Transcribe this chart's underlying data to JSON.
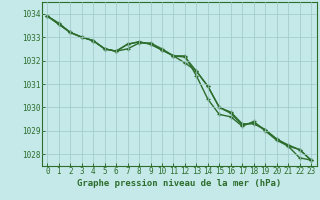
{
  "title": "",
  "xlabel": "Graphe pression niveau de la mer (hPa)",
  "background_color": "#c5e8e8",
  "grid_color": "#9ec8c8",
  "line_color": "#2d6e2d",
  "border_color": "#2d6e2d",
  "xlim": [
    -0.5,
    23.5
  ],
  "ylim": [
    1027.5,
    1034.5
  ],
  "yticks": [
    1028,
    1029,
    1030,
    1031,
    1032,
    1033,
    1034
  ],
  "xticks": [
    0,
    1,
    2,
    3,
    4,
    5,
    6,
    7,
    8,
    9,
    10,
    11,
    12,
    13,
    14,
    15,
    16,
    17,
    18,
    19,
    20,
    21,
    22,
    23
  ],
  "series": [
    [
      1033.9,
      1033.6,
      1033.2,
      1033.0,
      1032.85,
      1032.5,
      1032.4,
      1032.5,
      1032.75,
      1032.75,
      1032.5,
      1032.2,
      1032.15,
      1031.55,
      1030.9,
      1030.0,
      1029.75,
      1029.25,
      1029.35,
      1029.05,
      1028.65,
      1028.35,
      1028.2,
      1027.75
    ],
    [
      1033.9,
      1033.55,
      1033.2,
      1033.0,
      1032.85,
      1032.5,
      1032.4,
      1032.7,
      1032.8,
      1032.7,
      1032.45,
      1032.2,
      1031.9,
      1031.55,
      1030.9,
      1030.0,
      1029.8,
      1029.3,
      1029.3,
      1029.05,
      1028.65,
      1028.4,
      1028.2,
      1027.75
    ],
    [
      1033.9,
      1033.55,
      1033.2,
      1033.0,
      1032.85,
      1032.5,
      1032.4,
      1032.7,
      1032.8,
      1032.7,
      1032.45,
      1032.2,
      1032.2,
      1031.35,
      1030.35,
      1029.7,
      1029.6,
      1029.2,
      1029.4,
      1029.0,
      1028.6,
      1028.35,
      1027.85,
      1027.75
    ]
  ],
  "marker": "+",
  "markersize": 3.5,
  "linewidth": 1.0,
  "tick_fontsize": 5.5,
  "xlabel_fontsize": 6.5
}
